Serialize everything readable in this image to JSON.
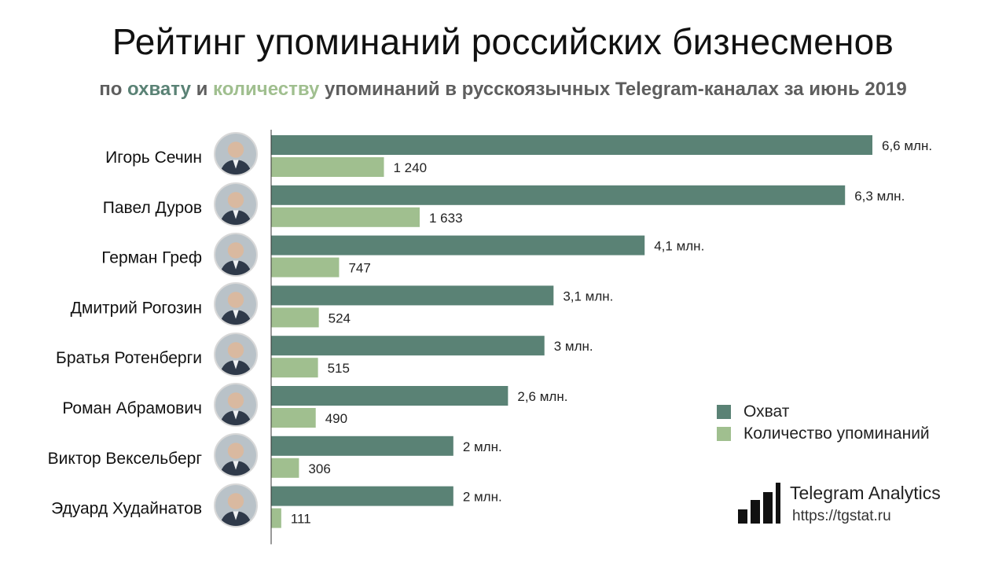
{
  "title": "Рейтинг упоминаний российских бизнесменов",
  "subtitle": {
    "part1": "по ",
    "reach_word": "охвату",
    "part2": " и ",
    "count_word": "количеству",
    "part3": " упоминаний в русскоязычных Telegram-каналах за июнь 2019"
  },
  "colors": {
    "reach": "#5a8275",
    "count": "#a0bf8f",
    "axis": "#333333"
  },
  "chart_data": {
    "type": "bar",
    "orientation": "horizontal",
    "categories": [
      "Игорь Сечин",
      "Павел Дуров",
      "Герман Греф",
      "Дмитрий Рогозин",
      "Братья Ротенберги",
      "Роман Абрамович",
      "Виктор Вексельберг",
      "Эдуард Худайнатов"
    ],
    "series": [
      {
        "name": "Охват",
        "unit": "млн.",
        "values": [
          6.6,
          6.3,
          4.1,
          3.1,
          3.0,
          2.6,
          2.0,
          2.0
        ],
        "labels": [
          "6,6 млн.",
          "6,3 млн.",
          "4,1 млн.",
          "3,1 млн.",
          "3 млн.",
          "2,6 млн.",
          "2 млн.",
          "2 млн."
        ]
      },
      {
        "name": "Количество упоминаний",
        "values": [
          1240,
          1633,
          747,
          524,
          515,
          490,
          306,
          111
        ],
        "labels": [
          "1 240",
          "1 633",
          "747",
          "524",
          "515",
          "490",
          "306",
          "111"
        ]
      }
    ],
    "legend_position": "bottom-right",
    "grid": false
  },
  "brand": {
    "name": "Telegram Analytics",
    "url": "https://tgstat.ru"
  }
}
